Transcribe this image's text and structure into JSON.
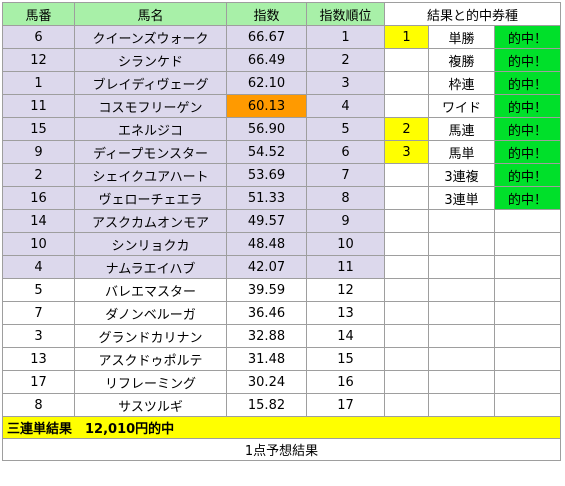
{
  "headers": {
    "horse_no": "馬番",
    "horse_name": "馬名",
    "index": "指数",
    "rank": "指数順位",
    "results": "結果と的中券種"
  },
  "rows": [
    {
      "no": "6",
      "name": "クイーンズウォーク",
      "index": "66.67",
      "rank": "1"
    },
    {
      "no": "12",
      "name": "シランケド",
      "index": "66.49",
      "rank": "2"
    },
    {
      "no": "1",
      "name": "ブレイディヴェーグ",
      "index": "62.10",
      "rank": "3"
    },
    {
      "no": "11",
      "name": "コスモフリーゲン",
      "index": "60.13",
      "rank": "4"
    },
    {
      "no": "15",
      "name": "エネルジコ",
      "index": "56.90",
      "rank": "5"
    },
    {
      "no": "9",
      "name": "ディープモンスター",
      "index": "54.52",
      "rank": "6"
    },
    {
      "no": "2",
      "name": "シェイクユアハート",
      "index": "53.69",
      "rank": "7"
    },
    {
      "no": "16",
      "name": "ヴェローチェエラ",
      "index": "51.33",
      "rank": "8"
    },
    {
      "no": "14",
      "name": "アスクカムオンモア",
      "index": "49.57",
      "rank": "9"
    },
    {
      "no": "10",
      "name": "シンリョクカ",
      "index": "48.48",
      "rank": "10"
    },
    {
      "no": "4",
      "name": "ナムラエイハブ",
      "index": "42.07",
      "rank": "11"
    },
    {
      "no": "5",
      "name": "バレエマスター",
      "index": "39.59",
      "rank": "12"
    },
    {
      "no": "7",
      "name": "ダノンベルーガ",
      "index": "36.46",
      "rank": "13"
    },
    {
      "no": "3",
      "name": "グランドカリナン",
      "index": "32.88",
      "rank": "14"
    },
    {
      "no": "13",
      "name": "アスクドゥポルテ",
      "index": "31.48",
      "rank": "15"
    },
    {
      "no": "17",
      "name": "リフレーミング",
      "index": "30.24",
      "rank": "16"
    },
    {
      "no": "8",
      "name": "サスツルギ",
      "index": "15.82",
      "rank": "17"
    }
  ],
  "results": [
    {
      "place": "1",
      "bet": "単勝",
      "hit": "的中！"
    },
    {
      "place": "",
      "bet": "複勝",
      "hit": "的中！"
    },
    {
      "place": "",
      "bet": "枠連",
      "hit": "的中！"
    },
    {
      "place": "",
      "bet": "ワイド",
      "hit": "的中！"
    },
    {
      "place": "2",
      "bet": "馬連",
      "hit": "的中！"
    },
    {
      "place": "3",
      "bet": "馬単",
      "hit": "的中！"
    },
    {
      "place": "",
      "bet": "3連複",
      "hit": "的中！"
    },
    {
      "place": "",
      "bet": "3連単",
      "hit": "的中！"
    }
  ],
  "summary": "三連単結果　12,010円的中",
  "footer": "1点予想結果",
  "colors": {
    "header_green": "#a8f0a8",
    "lavender": "#dcd8ec",
    "orange": "#ff9a00",
    "yellow": "#ffff00",
    "green": "#00e02a"
  }
}
